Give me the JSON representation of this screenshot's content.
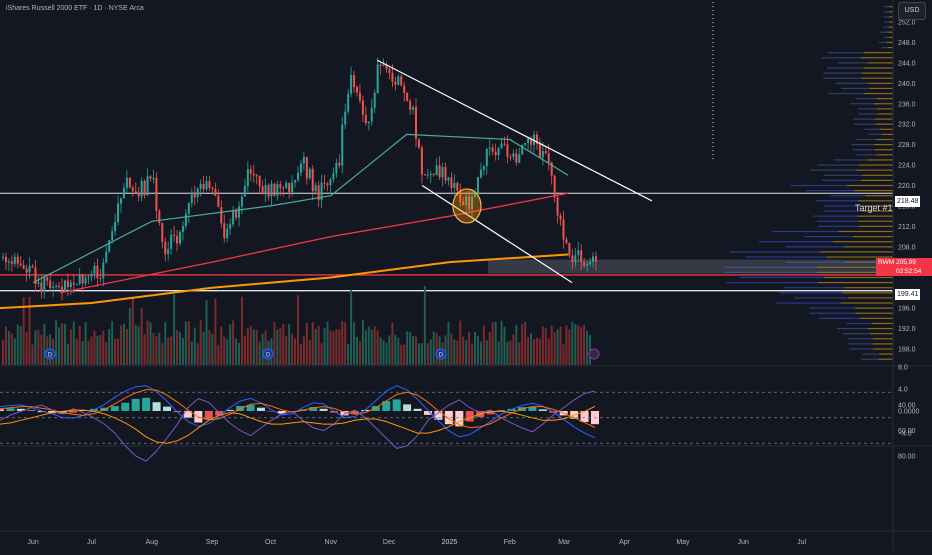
{
  "header": {
    "title": "iShares Russell 2000 ETF · 1D · NYSE Arca",
    "currency_button": "USD"
  },
  "annotations": {
    "target_label": "Target #1",
    "level_218": "218.48",
    "level_199": "199.41",
    "last_symbol": "RWM",
    "last_price": "205.99",
    "countdown": "02:52:54"
  },
  "colors": {
    "background": "#131722",
    "up": "#26a69a",
    "down": "#ef5350",
    "ma50": "#4caf8f",
    "ma200": "#f23645",
    "ma_long": "#ff9800",
    "macd": "#2962ff",
    "signal": "#ff6d00",
    "rsi": "#7e57c2"
  },
  "chart_data": [
    {
      "type": "candlestick",
      "title": "iShares Russell 2000 ETF · 1D · NYSE Arca",
      "x_ticks": [
        "Jun",
        "Jul",
        "Aug",
        "Sep",
        "Oct",
        "Nov",
        "Dec",
        "2025",
        "Feb",
        "Mar",
        "Apr",
        "May",
        "Jun",
        "Jul"
      ],
      "y_ticks": [
        188.0,
        192.0,
        196.0,
        200.0,
        204.0,
        208.0,
        212.0,
        216.0,
        220.0,
        224.0,
        228.0,
        232.0,
        236.0,
        240.0,
        244.0,
        248.0,
        252.0
      ],
      "ylim": [
        186,
        255
      ],
      "x_range_months": [
        "2024-05-15",
        "2025-07-31"
      ],
      "close_path": [
        {
          "date": "2024-05-15",
          "value": 206
        },
        {
          "date": "2024-05-25",
          "value": 204
        },
        {
          "date": "2024-06-05",
          "value": 201
        },
        {
          "date": "2024-06-15",
          "value": 200
        },
        {
          "date": "2024-06-25",
          "value": 202
        },
        {
          "date": "2024-07-05",
          "value": 203
        },
        {
          "date": "2024-07-12",
          "value": 212
        },
        {
          "date": "2024-07-18",
          "value": 222
        },
        {
          "date": "2024-07-25",
          "value": 219
        },
        {
          "date": "2024-08-01",
          "value": 221
        },
        {
          "date": "2024-08-07",
          "value": 207
        },
        {
          "date": "2024-08-15",
          "value": 211
        },
        {
          "date": "2024-08-23",
          "value": 219
        },
        {
          "date": "2024-09-01",
          "value": 221
        },
        {
          "date": "2024-09-06",
          "value": 209
        },
        {
          "date": "2024-09-12",
          "value": 214
        },
        {
          "date": "2024-09-19",
          "value": 222
        },
        {
          "date": "2024-09-30",
          "value": 219
        },
        {
          "date": "2024-10-10",
          "value": 220
        },
        {
          "date": "2024-10-17",
          "value": 225
        },
        {
          "date": "2024-10-25",
          "value": 218
        },
        {
          "date": "2024-11-05",
          "value": 224
        },
        {
          "date": "2024-11-07",
          "value": 234
        },
        {
          "date": "2024-11-11",
          "value": 242
        },
        {
          "date": "2024-11-20",
          "value": 232
        },
        {
          "date": "2024-11-25",
          "value": 243
        },
        {
          "date": "2024-12-05",
          "value": 241
        },
        {
          "date": "2024-12-12",
          "value": 236
        },
        {
          "date": "2024-12-18",
          "value": 221
        },
        {
          "date": "2024-12-27",
          "value": 223
        },
        {
          "date": "2025-01-10",
          "value": 216
        },
        {
          "date": "2025-01-22",
          "value": 228
        },
        {
          "date": "2025-02-05",
          "value": 226
        },
        {
          "date": "2025-02-12",
          "value": 229
        },
        {
          "date": "2025-02-20",
          "value": 225
        },
        {
          "date": "2025-02-25",
          "value": 215
        },
        {
          "date": "2025-03-03",
          "value": 205.99
        }
      ],
      "moving_averages": [
        {
          "name": "MA50",
          "points": [
            {
              "date": "2024-06-01",
              "value": 201
            },
            {
              "date": "2024-08-01",
              "value": 213
            },
            {
              "date": "2024-10-01",
              "value": 216
            },
            {
              "date": "2024-11-01",
              "value": 218
            },
            {
              "date": "2024-12-10",
              "value": 230
            },
            {
              "date": "2025-02-01",
              "value": 229
            },
            {
              "date": "2025-03-03",
              "value": 222
            }
          ]
        },
        {
          "name": "MA200",
          "points": [
            {
              "date": "2024-06-15",
              "value": 199
            },
            {
              "date": "2024-09-01",
              "value": 205
            },
            {
              "date": "2024-11-01",
              "value": 210
            },
            {
              "date": "2025-01-01",
              "value": 214
            },
            {
              "date": "2025-03-03",
              "value": 218.5
            }
          ]
        },
        {
          "name": "MA_long",
          "points": [
            {
              "date": "2024-05-15",
              "value": 196
            },
            {
              "date": "2024-07-01",
              "value": 197
            },
            {
              "date": "2024-09-01",
              "value": 200
            },
            {
              "date": "2024-11-01",
              "value": 202
            },
            {
              "date": "2025-01-01",
              "value": 205
            },
            {
              "date": "2025-03-03",
              "value": 206.5
            }
          ]
        }
      ],
      "horizontal_levels": [
        218.48,
        202.5,
        199.41
      ],
      "trend_lines": [
        {
          "from": {
            "date": "2024-11-25",
            "value": 244.5
          },
          "to": {
            "date": "2025-04-15",
            "value": 217
          }
        },
        {
          "from": {
            "date": "2024-12-18",
            "value": 220
          },
          "to": {
            "date": "2025-03-05",
            "value": 201
          }
        }
      ],
      "highlight_circle": {
        "date": "2025-01-10",
        "value": 216
      }
    },
    {
      "type": "bar",
      "title": "",
      "ylim": [
        -5,
        8
      ],
      "y_ticks": [
        -4.0,
        0.0,
        4.0,
        8.0
      ],
      "x_range_months": [
        "2024-05-15",
        "2025-03-05"
      ],
      "histogram": [
        0.3,
        0.5,
        0.4,
        0.1,
        -0.2,
        -0.4,
        -0.5,
        -0.3,
        0.1,
        0.4,
        0.6,
        0.9,
        1.5,
        2.2,
        2.4,
        1.6,
        0.8,
        -0.2,
        -1.2,
        -2.1,
        -1.6,
        -0.8,
        0.2,
        0.9,
        1.1,
        0.6,
        -0.1,
        -0.5,
        -0.2,
        0.3,
        0.7,
        0.4,
        -0.3,
        -0.8,
        -0.5,
        0.2,
        0.9,
        1.8,
        2.1,
        1.2,
        0.4,
        -0.7,
        -1.6,
        -2.4,
        -2.8,
        -1.9,
        -1.1,
        -0.6,
        0.1,
        0.4,
        0.7,
        0.8,
        0.3,
        -0.3,
        -0.8,
        -1.4,
        -2.0,
        -2.4
      ],
      "macd_line": [
        0.8,
        1.0,
        1.1,
        0.6,
        0.0,
        -0.5,
        -1.2,
        -1.3,
        -0.8,
        0.2,
        1.2,
        2.5,
        3.6,
        4.4,
        4.6,
        3.5,
        1.8,
        -0.2,
        -1.9,
        -2.8,
        -2.3,
        -1.0,
        0.6,
        1.8,
        2.3,
        1.5,
        0.2,
        -0.7,
        -0.5,
        0.6,
        1.5,
        1.3,
        0.0,
        -1.2,
        -1.0,
        0.2,
        1.9,
        3.6,
        4.6,
        3.8,
        2.1,
        0.1,
        -1.8,
        -3.6,
        -4.7,
        -4.3,
        -3.1,
        -1.9,
        -0.6,
        0.3,
        1.0,
        1.4,
        0.9,
        -0.2,
        -1.5,
        -2.9,
        -4.0,
        -4.9
      ],
      "signal_line": [
        0.4,
        0.6,
        0.8,
        0.8,
        0.5,
        0.2,
        -0.3,
        -0.6,
        -0.8,
        -0.5,
        0.3,
        1.3,
        2.4,
        3.3,
        3.9,
        3.8,
        2.9,
        1.6,
        0.2,
        -1.1,
        -1.6,
        -1.4,
        -0.6,
        0.4,
        1.2,
        1.4,
        0.9,
        0.2,
        -0.2,
        0.1,
        0.6,
        0.8,
        0.5,
        -0.2,
        -0.6,
        -0.3,
        0.6,
        1.8,
        3.0,
        3.4,
        2.9,
        1.6,
        0.0,
        -1.4,
        -2.5,
        -3.0,
        -2.9,
        -2.3,
        -1.3,
        -0.4,
        0.4,
        0.8,
        0.8,
        0.3,
        -0.4,
        -1.2,
        -2.1,
        -3.0
      ]
    },
    {
      "type": "line",
      "title": "",
      "ylim": [
        28,
        90
      ],
      "y_ticks": [
        40.0,
        60.0,
        80.0
      ],
      "bands": [
        70,
        50,
        30
      ],
      "x_range_months": [
        "2024-05-15",
        "2025-03-05"
      ],
      "rsi": [
        52,
        48,
        45,
        42,
        40,
        44,
        47,
        43,
        46,
        50,
        55,
        62,
        72,
        80,
        84,
        76,
        66,
        55,
        42,
        35,
        38,
        46,
        54,
        60,
        64,
        58,
        52,
        47,
        45,
        52,
        58,
        60,
        55,
        47,
        44,
        50,
        58,
        66,
        74,
        72,
        64,
        52,
        46,
        40,
        36,
        42,
        46,
        44,
        50,
        54,
        58,
        61,
        55,
        48,
        42,
        36,
        31,
        29
      ],
      "rsi_ma": [
        55,
        54,
        52,
        50,
        48,
        46,
        45,
        44,
        44,
        45,
        47,
        50,
        54,
        59,
        65,
        69,
        70,
        68,
        64,
        58,
        52,
        48,
        46,
        47,
        50,
        53,
        55,
        55,
        54,
        53,
        54,
        55,
        55,
        54,
        52,
        51,
        51,
        53,
        56,
        59,
        62,
        62,
        60,
        57,
        53,
        50,
        47,
        45,
        45,
        46,
        48,
        50,
        52,
        52,
        51,
        48,
        45,
        41
      ]
    }
  ]
}
